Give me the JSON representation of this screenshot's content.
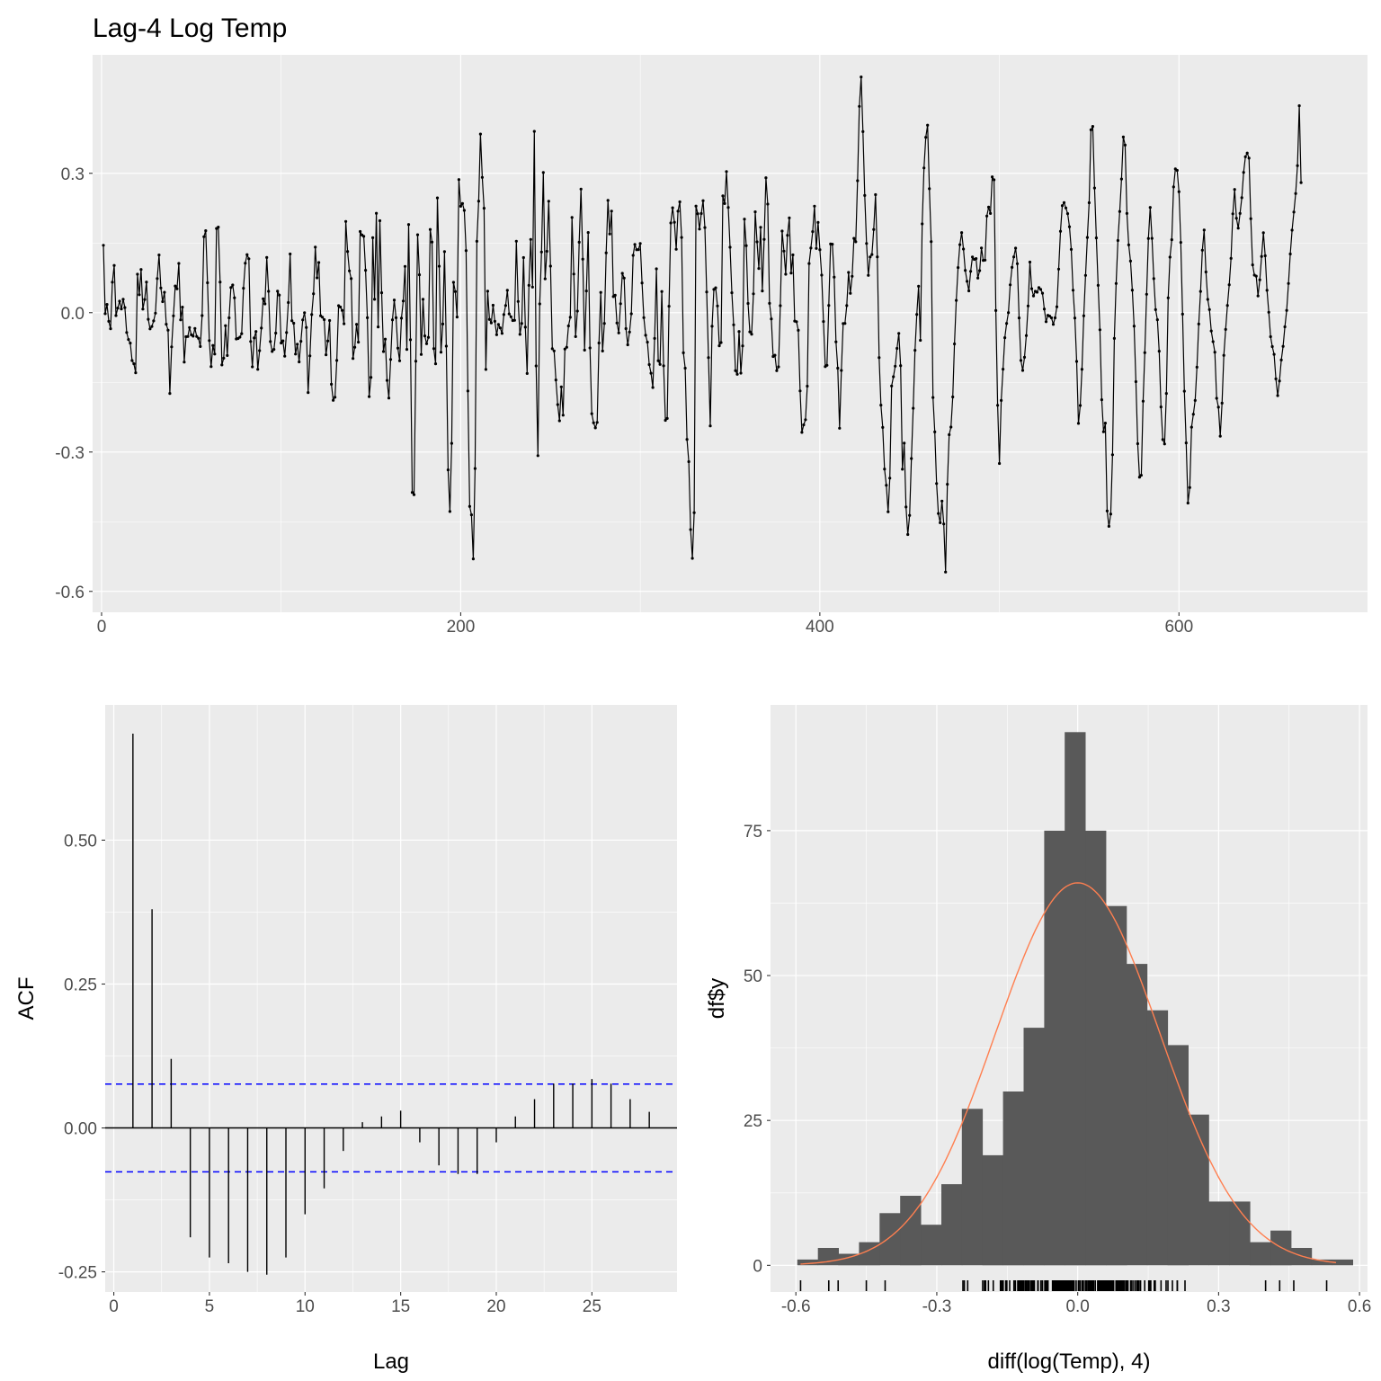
{
  "chart_data": [
    {
      "type": "line",
      "title": "Lag-4 Log Temp",
      "xlabel": "",
      "ylabel": "",
      "xlim": [
        -5,
        705
      ],
      "ylim": [
        -0.645,
        0.555
      ],
      "x_ticks": [
        0,
        200,
        400,
        600
      ],
      "x_tick_labels": [
        "0",
        "200",
        "400",
        "600"
      ],
      "y_ticks": [
        -0.6,
        -0.3,
        0.0,
        0.3
      ],
      "y_tick_labels": [
        "-0.6",
        "-0.3",
        "0.0",
        "0.3"
      ],
      "grid": true,
      "point_markers": true,
      "n_points": 668,
      "series": [
        {
          "color": "#000000",
          "x_start": 1,
          "y": [
            0.145,
            -0.005,
            0.02,
            0.01,
            -0.075,
            0.015,
            0.105,
            0.1,
            -0.035,
            0.015,
            0.025,
            0.005,
            0.03,
            0.025,
            -0.015,
            -0.075,
            -0.045,
            -0.075,
            -0.11,
            -0.11,
            -0.135,
            0.095,
            0.005,
            0.14,
            0.01,
            0.005,
            0.045,
            0.075,
            -0.035,
            -0.035,
            -0.03,
            -0.02,
            -0.005,
            0.01,
            0.18,
            0.065,
            0.045,
            0.015,
            0.05,
            -0.03,
            -0.03,
            -0.19,
            -0.09,
            -0.03,
            0.03,
            0.085,
            0.03,
            0.135,
            -0.045,
            0.015,
            -0.11,
            -0.05,
            -0.06,
            -0.03,
            -0.035,
            -0.06,
            -0.045,
            -0.03,
            -0.055,
            -0.055,
            -0.075,
            -0.045,
            0.165,
            0.16,
            0.2,
            -0.06,
            -0.06,
            -0.135,
            -0.06,
            -0.09,
            0.18,
            0.195,
            0.14,
            -0.1,
            -0.13,
            -0.07,
            -0.005,
            -0.12,
            0.005,
            0.055,
            0.06,
            0.055,
            -0.055,
            -0.06,
            -0.05,
            -0.055,
            -0.04,
            0.08,
            0.11,
            0.125,
            0.135,
            -0.04,
            -0.14,
            -0.07,
            -0.035,
            -0.045,
            -0.16,
            -0.06,
            -0.03,
            0.03,
            0.005,
            0.12,
            0.115,
            -0.085,
            -0.035,
            -0.12,
            -0.06,
            -0.04,
            0.055,
            0.04,
            -0.07,
            -0.035,
            -0.14,
            -0.01,
            -0.08,
            0.095,
            0.14,
            -0.055,
            -0.02,
            -0.09,
            -0.06,
            -0.115,
            -0.08,
            -0.03,
            0.0,
            0.0,
            -0.045,
            -0.2,
            -0.085,
            -0.005,
            0.015,
            0.18,
            0.035,
            0.14,
            0.075,
            -0.06,
            0.01,
            -0.02,
            -0.095,
            -0.065,
            0.01,
            -0.15,
            -0.165,
            -0.225,
            -0.14,
            -0.08,
            0.05,
            0.005,
            0.005,
            -0.04,
            0.2,
            0.18,
            0.015,
            0.2,
            -0.045,
            -0.13,
            -0.055,
            -0.02,
            -0.065,
            0.175,
            0.17,
            0.155,
            0.185,
            -0.04,
            0.015,
            -0.29,
            -0.09,
            0.2,
            0.025,
            0.245,
            -0.095,
            0.22,
            0.15,
            -0.1,
            -0.07,
            -0.05,
            -0.175,
            -0.185,
            -0.1,
            -0.02,
            0.025,
            0.035,
            -0.105,
            -0.04,
            -0.155,
            0.06,
            0.015,
            0.11,
            -0.08,
            0.21,
            0.035,
            -0.375,
            -0.41,
            -0.37,
            0.1,
            0.2,
            0.05,
            -0.105,
            0.03,
            -0.05,
            -0.05,
            -0.12,
            0.07,
            0.305,
            0.04,
            -0.13,
            -0.105,
            0.28,
            0.105,
            -0.085,
            -0.085,
            0.155,
            0.09,
            -0.25,
            -0.4,
            -0.44,
            -0.245,
            0.09,
            0.05,
            -0.07,
            0.33,
            0.165,
            0.335,
            0.13,
            0.28,
            0.075,
            -0.22,
            -0.43,
            -0.43,
            -0.53,
            -0.53,
            0.175,
            0.12,
            0.36,
            0.4,
            0.25,
            0.22,
            -0.14,
            0.05,
            -0.01,
            -0.035,
            0.01,
            0.025,
            -0.06,
            -0.04,
            -0.02,
            -0.035,
            -0.045,
            -0.005,
            0.005,
            0.06,
            0.02,
            -0.035,
            0.015,
            -0.035,
            -0.01,
            0.18,
            0.02,
            -0.045,
            -0.065,
            0.145,
            0.06,
            -0.155,
            -0.11,
            0.15,
            0.16,
            0.04,
            0.395,
            -0.085,
            -0.385,
            -0.02,
            0.1,
            0.17,
            0.41,
            -0.1,
            0.2,
            0.245,
            0.1,
            -0.08,
            -0.06,
            -0.16,
            -0.115,
            -0.3,
            -0.18,
            -0.15,
            -0.24,
            -0.06,
            -0.075,
            -0.02,
            -0.09,
            0.25,
            0.12,
            0.04,
            -0.12,
            0.06,
            0.175,
            0.275,
            0.12,
            -0.09,
            -0.02,
            0.25,
            0.035,
            -0.2,
            -0.23,
            -0.24,
            -0.25,
            -0.235,
            -0.07,
            0.065,
            -0.08,
            -0.09,
            0.09,
            0.17,
            0.29,
            0.12,
            0.24,
            0.02,
            0.04,
            -0.015,
            -0.06,
            0.0,
            0.05,
            0.12,
            0.045,
            -0.065,
            -0.07,
            -0.04,
            -0.01,
            0.12,
            0.14,
            0.165,
            0.09,
            0.18,
            0.13,
            0.04,
            -0.02,
            -0.05,
            -0.06,
            -0.11,
            -0.12,
            -0.155,
            -0.17,
            0.05,
            0.12,
            -0.18,
            -0.1,
            0.05,
            -0.105,
            -0.22,
            -0.28,
            -0.11,
            0.185,
            0.2,
            0.24,
            0.18,
            0.13,
            0.22,
            0.24,
            0.225,
            -0.08,
            -0.1,
            -0.145,
            -0.38,
            -0.29,
            -0.52,
            -0.53,
            -0.43,
            0.23,
            0.225,
            0.17,
            0.2,
            0.23,
            0.25,
            0.15,
            0.015,
            -0.11,
            -0.245,
            -0.04,
            0.05,
            0.05,
            0.06,
            -0.04,
            -0.095,
            -0.05,
            0.33,
            0.225,
            0.305,
            0.235,
            0.17,
            0.05,
            0.03,
            -0.09,
            -0.15,
            -0.125,
            -0.02,
            -0.14,
            -0.08,
            0.205,
            0.18,
            0.04,
            -0.015,
            -0.07,
            -0.03,
            0.07,
            0.25,
            0.145,
            0.09,
            0.21,
            0.04,
            0.065,
            0.31,
            0.27,
            0.21,
            -0.055,
            -0.005,
            -0.1,
            -0.09,
            -0.12,
            -0.15,
            -0.03,
            0.085,
            0.265,
            0.05,
            0.095,
            0.18,
            0.205,
            0.08,
            0.16,
            -0.04,
            0.035,
            -0.1,
            0.02,
            -0.28,
            -0.25,
            -0.24,
            -0.23,
            -0.18,
            0.1,
            0.13,
            0.16,
            0.195,
            0.26,
            0.07,
            0.235,
            0.12,
            0.08,
            -0.01,
            -0.11,
            -0.14,
            -0.055,
            0.11,
            0.18,
            0.13,
            0.06,
            -0.08,
            -0.12,
            -0.26,
            -0.15,
            -0.03,
            -0.01,
            -0.04,
            0.06,
            0.1,
            0.025,
            0.085,
            0.16,
            0.14,
            0.25,
            0.4,
            0.53,
            0.48,
            0.32,
            0.22,
            0.13,
            0.075,
            0.12,
            0.12,
            0.16,
            0.24,
            0.28,
            -0.065,
            -0.12,
            -0.235,
            -0.25,
            -0.345,
            -0.37,
            -0.43,
            -0.42,
            -0.165,
            -0.145,
            -0.13,
            -0.105,
            -0.065,
            -0.04,
            -0.12,
            -0.34,
            -0.26,
            -0.4,
            -0.47,
            -0.49,
            -0.38,
            -0.27,
            -0.18,
            -0.06,
            0.0,
            0.065,
            -0.1,
            0.15,
            0.3,
            0.33,
            0.425,
            0.39,
            0.22,
            0.14,
            -0.2,
            -0.25,
            -0.36,
            -0.405,
            -0.5,
            -0.38,
            -0.43,
            -0.47,
            -0.59,
            -0.33,
            -0.26,
            -0.25,
            -0.2,
            -0.1,
            0.01,
            0.05,
            0.14,
            0.15,
            0.18,
            0.13,
            0.09,
            0.07,
            0.04,
            0.075,
            0.12,
            0.12,
            0.11,
            0.12,
            0.06,
            0.095,
            0.14,
            0.115,
            0.09,
            0.2,
            0.225,
            0.23,
            0.2,
            0.34,
            0.27,
            -0.03,
            -0.2,
            -0.34,
            -0.2,
            -0.15,
            -0.065,
            -0.04,
            -0.01,
            0.005,
            0.075,
            0.1,
            0.12,
            0.14,
            0.13,
            0.025,
            -0.08,
            -0.13,
            -0.12,
            -0.085,
            -0.04,
            0.02,
            0.11,
            0.055,
            0.03,
            0.055,
            0.03,
            0.06,
            0.05,
            0.05,
            0.04,
            0.005,
            -0.02,
            -0.005,
            -0.01,
            0.0,
            -0.03,
            -0.02,
            -0.005,
            0.02,
            0.11,
            0.18,
            0.23,
            0.24,
            0.22,
            0.24,
            0.17,
            0.2,
            0.095,
            0.03,
            -0.02,
            -0.11,
            -0.24,
            -0.21,
            -0.15,
            -0.05,
            0.06,
            0.1,
            0.2,
            0.25,
            0.42,
            0.4,
            0.275,
            0.18,
            0.075,
            0.02,
            -0.12,
            -0.25,
            -0.26,
            -0.23,
            -0.46,
            -0.46,
            -0.44,
            -0.36,
            -0.08,
            0.0,
            0.15,
            0.16,
            0.25,
            0.3,
            0.39,
            0.36,
            0.22,
            0.15,
            0.13,
            0.07,
            0.02,
            -0.07,
            -0.19,
            -0.31,
            -0.36,
            -0.35,
            -0.2,
            -0.11,
            0.0,
            0.12,
            0.21,
            0.24,
            0.12,
            0.06,
            0.0,
            -0.015,
            -0.07,
            -0.18,
            -0.28,
            -0.26,
            -0.31,
            -0.07,
            0.08,
            0.13,
            0.16,
            0.27,
            0.31,
            0.305,
            0.31,
            0.17,
            0.13,
            -0.1,
            -0.2,
            -0.3,
            -0.42,
            -0.38,
            -0.25,
            -0.225,
            -0.2,
            -0.17,
            -0.06,
            0.0,
            0.065,
            0.15,
            0.18,
            0.09,
            0.03,
            0.02,
            -0.03,
            -0.055,
            -0.07,
            -0.095,
            -0.22,
            -0.2,
            -0.27,
            -0.2,
            -0.1,
            -0.05,
            0.0,
            0.04,
            0.08,
            0.14,
            0.24,
            0.27,
            0.2,
            0.18,
            0.21,
            0.23,
            0.29,
            0.32,
            0.35,
            0.34,
            0.33,
            0.18,
            0.1,
            0.08,
            0.09,
            0.03,
            0.05,
            0.1,
            0.14,
            0.19,
            0.1,
            0.04,
            0.0,
            -0.05,
            -0.07,
            -0.085,
            -0.1,
            -0.2,
            -0.16,
            -0.14,
            -0.09,
            -0.07,
            -0.03,
            0.0,
            0.05,
            0.11,
            0.16,
            0.2,
            0.23,
            0.27,
            0.33,
            0.46,
            0.28
          ]
        }
      ]
    },
    {
      "type": "bar",
      "subtype": "acf",
      "title": "",
      "xlabel": "Lag",
      "ylabel": "ACF",
      "xlim": [
        -0.45,
        29.45
      ],
      "ylim": [
        -0.285,
        0.735
      ],
      "x_ticks": [
        0,
        5,
        10,
        15,
        20,
        25
      ],
      "x_tick_labels": [
        "0",
        "5",
        "10",
        "15",
        "20",
        "25"
      ],
      "y_ticks": [
        -0.25,
        0.0,
        0.25,
        0.5
      ],
      "y_tick_labels": [
        "-0.25",
        "0.00",
        "0.25",
        "0.50"
      ],
      "grid": true,
      "lags": [
        1,
        2,
        3,
        4,
        5,
        6,
        7,
        8,
        9,
        10,
        11,
        12,
        13,
        14,
        15,
        16,
        17,
        18,
        19,
        20,
        21,
        22,
        23,
        24,
        25,
        26,
        27,
        28
      ],
      "values": [
        0.685,
        0.38,
        0.12,
        -0.19,
        -0.225,
        -0.235,
        -0.25,
        -0.255,
        -0.225,
        -0.15,
        -0.105,
        -0.04,
        0.01,
        0.02,
        0.03,
        -0.025,
        -0.065,
        -0.08,
        -0.08,
        -0.025,
        0.02,
        0.05,
        0.077,
        0.077,
        0.085,
        0.077,
        0.05,
        0.028
      ],
      "confidence_bounds": [
        0.0762,
        -0.0762
      ],
      "bound_color": "#0000ff"
    },
    {
      "type": "bar",
      "subtype": "histogram",
      "title": "",
      "xlabel": "diff(log(Temp), 4)",
      "ylabel": "df$y",
      "xlim": [
        -0.654,
        0.617
      ],
      "ylim": [
        -4.6,
        96.7
      ],
      "x_ticks": [
        -0.6,
        -0.3,
        0.0,
        0.3,
        0.6
      ],
      "x_tick_labels": [
        "-0.6",
        "-0.3",
        "0.0",
        "0.3",
        "0.6"
      ],
      "y_ticks": [
        0,
        25,
        50,
        75
      ],
      "y_tick_labels": [
        "0",
        "25",
        "50",
        "75"
      ],
      "grid": true,
      "bin_width": 0.0438,
      "bin_left_edges": [
        -0.597,
        -0.5532,
        -0.5094,
        -0.4656,
        -0.4218,
        -0.378,
        -0.3342,
        -0.2904,
        -0.2466,
        -0.2028,
        -0.159,
        -0.1152,
        -0.0714,
        -0.0276,
        0.0162,
        0.06,
        0.1038,
        0.1476,
        0.1914,
        0.2352,
        0.279,
        0.3228,
        0.3666,
        0.4104,
        0.4542,
        0.498,
        0.5418
      ],
      "counts": [
        1,
        3,
        2,
        4,
        9,
        12,
        7,
        14,
        27,
        19,
        30,
        41,
        75,
        92,
        75,
        62,
        52,
        44,
        38,
        26,
        11,
        11,
        4,
        6,
        3,
        1,
        1
      ],
      "bar_color": "#595959",
      "density_curve": {
        "color": "#ff7f50",
        "mean": 0.0,
        "sd": 0.175,
        "peak": 66
      },
      "rug": true
    }
  ]
}
